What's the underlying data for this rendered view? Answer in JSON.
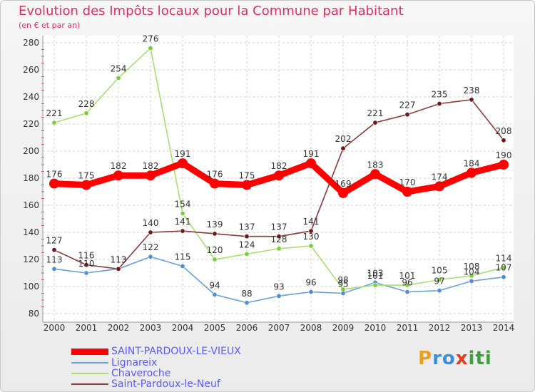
{
  "header": {
    "title": "Evolution des Impôts locaux pour la Commune par Habitant",
    "subtitle": "(en € et par an)"
  },
  "logo": {
    "text": "Proxiti",
    "colors": [
      "#e8a020",
      "#3a8fd8",
      "#e04020",
      "#40a040"
    ]
  },
  "chart_data": {
    "type": "line",
    "title": "Evolution des Impôts locaux pour la Commune par Habitant",
    "subtitle": "(en € et par an)",
    "xlabel": "",
    "ylabel": "",
    "x": [
      "2000",
      "2001",
      "2002",
      "2003",
      "2004",
      "2005",
      "2006",
      "2007",
      "2008",
      "2009",
      "2010",
      "2011",
      "2012",
      "2013",
      "2014"
    ],
    "ylim": [
      80,
      280
    ],
    "yticks": [
      80,
      100,
      120,
      140,
      160,
      180,
      200,
      220,
      240,
      260,
      280
    ],
    "grid": true,
    "legend_position": "bottom-left",
    "series": [
      {
        "name": "SAINT-PARDOUX-LE-VIEUX",
        "color": "#ff0000",
        "markerColor": "#ff0000",
        "emphasis": true,
        "values": [
          176,
          175,
          182,
          182,
          191,
          176,
          175,
          182,
          191,
          169,
          183,
          170,
          174,
          184,
          190
        ]
      },
      {
        "name": "Lignareix",
        "color": "#6aa0d8",
        "markerColor": "#4f8fd0",
        "values": [
          113,
          110,
          113,
          122,
          115,
          94,
          88,
          93,
          96,
          95,
          103,
          96,
          97,
          104,
          107
        ]
      },
      {
        "name": "Chaveroche",
        "color": "#a8e070",
        "markerColor": "#7acc3a",
        "values": [
          221,
          228,
          254,
          276,
          154,
          120,
          124,
          128,
          130,
          98,
          101,
          101,
          105,
          108,
          114
        ]
      },
      {
        "name": "Saint-Pardoux-le-Neuf",
        "color": "#8b3a3a",
        "markerColor": "#6a1a1a",
        "values": [
          127,
          116,
          113,
          140,
          141,
          139,
          137,
          137,
          141,
          202,
          221,
          227,
          235,
          238,
          208
        ]
      }
    ],
    "data_labels": [
      {
        "series": 0,
        "labels": [
          "176",
          "175",
          "182",
          "182",
          "191",
          "176",
          "175",
          "182",
          "191",
          "169",
          "183",
          "170",
          "174",
          "184",
          "190"
        ]
      },
      {
        "series": 1,
        "labels": [
          "113",
          "110",
          "113",
          "122",
          "115",
          "94",
          "88",
          "93",
          "96",
          "95",
          "103",
          "96",
          "97",
          "104",
          "107"
        ]
      },
      {
        "series": 2,
        "labels": [
          "221",
          "228",
          "254",
          "276",
          "154",
          "120",
          "124",
          "128",
          "130",
          "98",
          "101",
          "101",
          "105",
          "108",
          "114"
        ]
      },
      {
        "series": 3,
        "labels": [
          "127",
          "116",
          "113",
          "140",
          "141",
          "139",
          "137",
          "137",
          "141",
          "202",
          "221",
          "227",
          "235",
          "238",
          "208"
        ]
      }
    ]
  }
}
